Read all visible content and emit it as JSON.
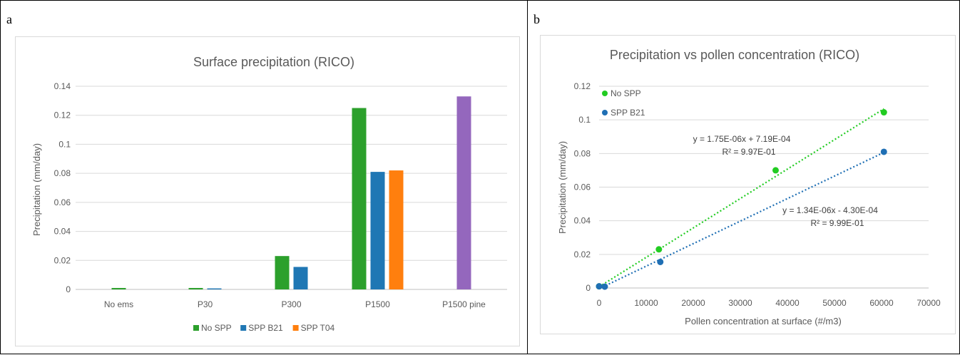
{
  "panels": {
    "a": {
      "letter": "a",
      "chart_data": {
        "type": "bar",
        "title": "Surface precipitation (RICO)",
        "xlabel": "",
        "ylabel": "Precipitation (mm/day)",
        "ylim": [
          0,
          0.14
        ],
        "yticks": [
          "0",
          "0.02",
          "0.04",
          "0.06",
          "0.08",
          "0.1",
          "0.12",
          "0.14"
        ],
        "grid": true,
        "legend_position": "bottom",
        "categories": [
          "No ems",
          "P30",
          "P300",
          "P1500",
          "P1500 pine"
        ],
        "series": [
          {
            "name": "No SPP",
            "color": "#2ca02c",
            "values": [
              0.001,
              0.001,
              0.023,
              0.125,
              null
            ]
          },
          {
            "name": "SPP B21",
            "color": "#1f77b4",
            "values": [
              null,
              0.0007,
              0.0155,
              0.081,
              null
            ]
          },
          {
            "name": "SPP T04",
            "color": "#ff7f0e",
            "values": [
              null,
              null,
              null,
              0.082,
              null
            ]
          },
          {
            "color": "#9467bd",
            "values": [
              null,
              null,
              null,
              null,
              0.133
            ]
          }
        ]
      }
    },
    "b": {
      "letter": "b",
      "chart_data": {
        "type": "scatter",
        "title": "Precipitation vs pollen concentration (RICO)",
        "xlabel": "Pollen concentration at surface (#/m3)",
        "ylabel": "Precipitation (mm/day)",
        "xlim": [
          0,
          70000
        ],
        "ylim": [
          0,
          0.12
        ],
        "xticks": [
          "0",
          "10000",
          "20000",
          "30000",
          "40000",
          "50000",
          "60000",
          "70000"
        ],
        "yticks": [
          "0",
          "0.02",
          "0.04",
          "0.06",
          "0.08",
          "0.1",
          "0.12"
        ],
        "grid": true,
        "legend_position": "top-left",
        "series": [
          {
            "name": "No SPP",
            "color": "#22cc22",
            "points": [
              [
                0,
                0.001
              ],
              [
                12700,
                0.023
              ],
              [
                37500,
                0.07
              ],
              [
                60500,
                0.1045
              ]
            ],
            "trendline": {
              "slope": 1.75e-06,
              "intercept": 0.000719,
              "x_range": [
                0,
                60500
              ],
              "equation": "y = 1.75E-06x + 7.19E-04",
              "r2": "R² = 9.97E-01"
            }
          },
          {
            "name": "SPP B21",
            "color": "#1f6fb4",
            "points": [
              [
                0,
                0.001
              ],
              [
                1200,
                0.0008
              ],
              [
                13000,
                0.0155
              ],
              [
                60500,
                0.081
              ]
            ],
            "trendline": {
              "slope": 1.34e-06,
              "intercept": -0.00043,
              "x_range": [
                0,
                60500
              ],
              "equation": "y = 1.34E-06x - 4.30E-04",
              "r2": "R² = 9.99E-01"
            }
          }
        ]
      }
    }
  }
}
